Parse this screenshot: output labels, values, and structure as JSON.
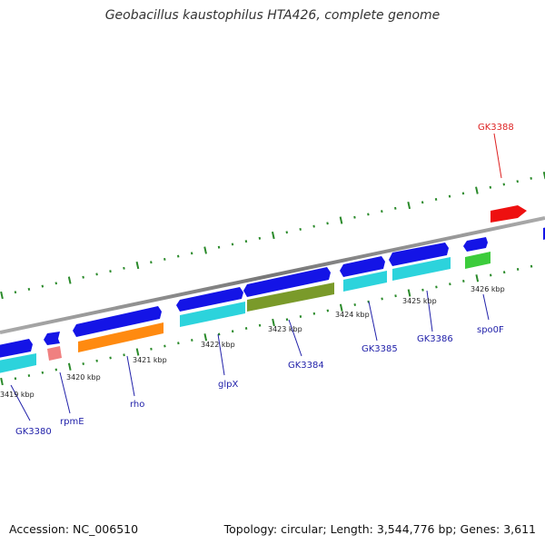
{
  "title": "Geobacillus kaustophilus HTA426, complete genome",
  "accession": "Accession: NC_006510",
  "stats": "Topology: circular; Length: 3,544,776 bp; Genes: 3,611",
  "colors": {
    "backbone": "#888888",
    "ticks": "#2a8a2a",
    "arrow_blue": "#1414e6",
    "arrow_cyan": "#2cd3dc",
    "arrow_orange": "#ff8a10",
    "arrow_olive": "#7a9a2a",
    "arrow_green": "#3ccc3c",
    "arrow_pink": "#f08080",
    "arrow_red": "#ee1010",
    "label_blue": "#2222aa",
    "label_red": "#dd2222"
  },
  "tick_labels": [
    "3419 kbp",
    "3420 kbp",
    "3421 kbp",
    "3422 kbp",
    "3423 kbp",
    "3424 kbp",
    "3425 kbp",
    "3426 kbp"
  ],
  "gene_labels": [
    "GK3380",
    "rpmE",
    "rho",
    "glpX",
    "GK3384",
    "GK3385",
    "GK3386",
    "spo0F",
    "GK3388"
  ]
}
